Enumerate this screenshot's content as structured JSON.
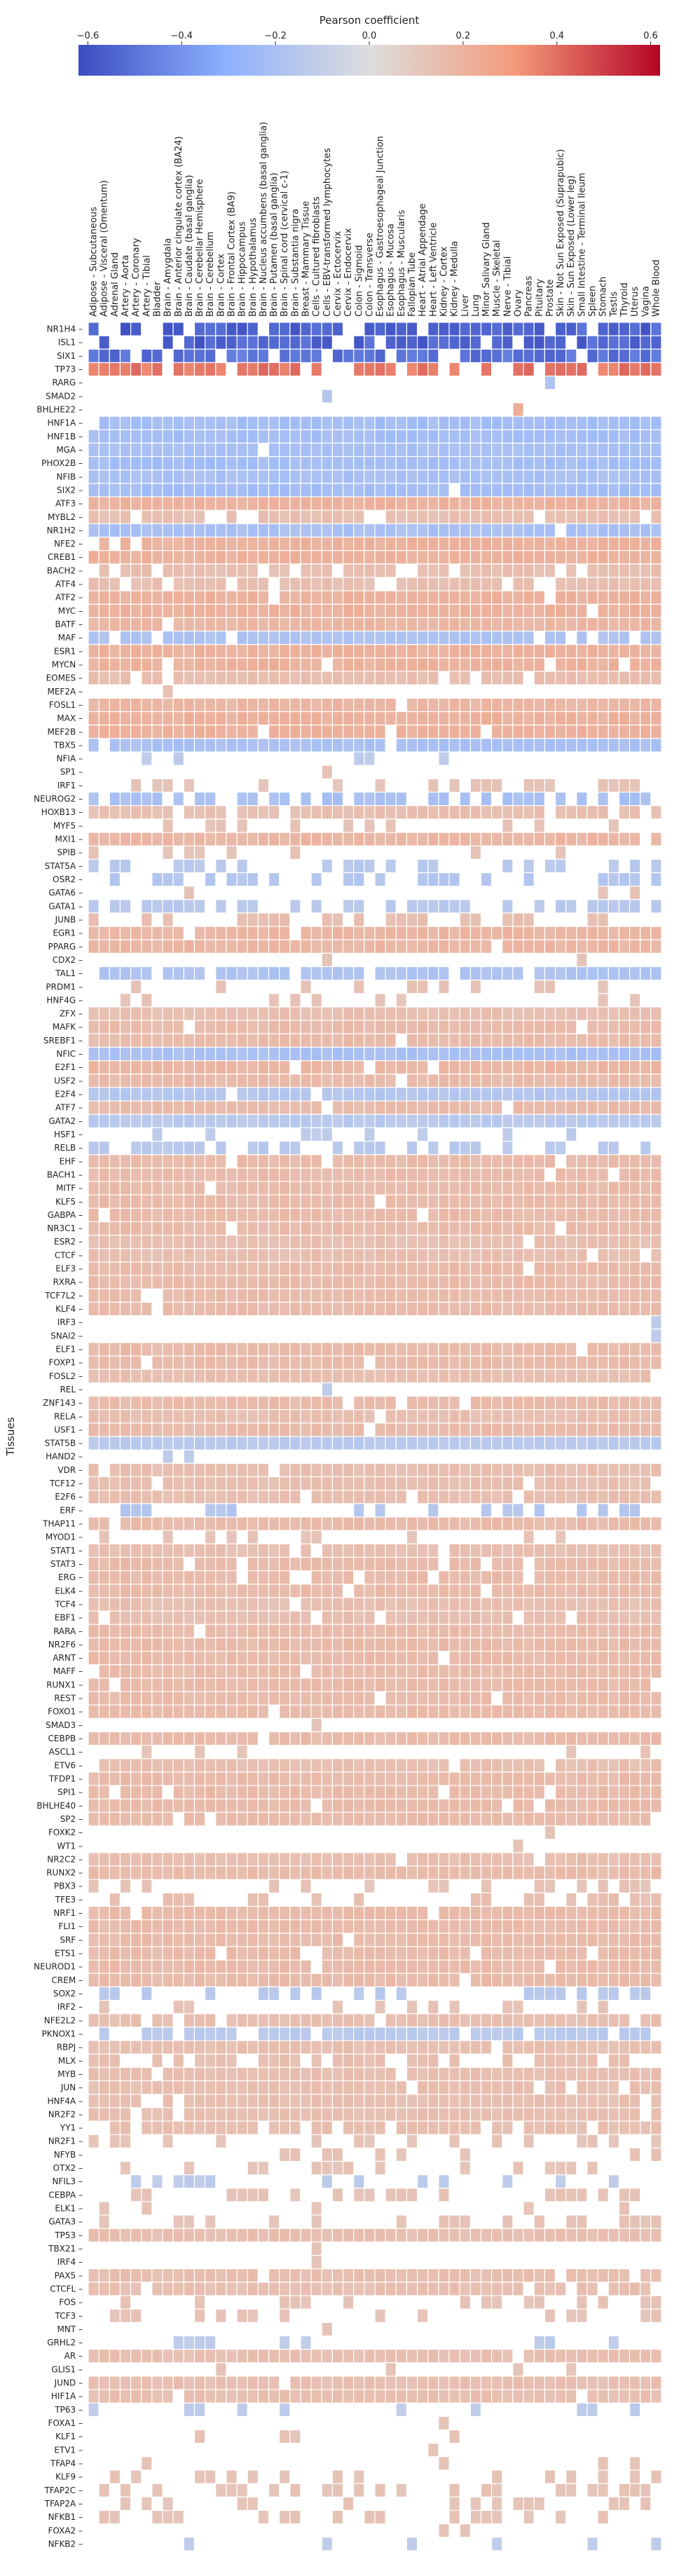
{
  "chart_data": {
    "type": "heatmap",
    "title": "",
    "xlabel": "",
    "ylabel": "Tissues",
    "colorbar": {
      "label": "Pearson coefficient",
      "range": [
        -0.62,
        0.62
      ],
      "ticks": [
        -0.6,
        -0.4,
        -0.2,
        0.0,
        0.2,
        0.4,
        0.6
      ],
      "tick_labels": [
        "−0.6",
        "−0.4",
        "−0.2",
        "0.0",
        "0.2",
        "0.4",
        "0.6"
      ],
      "colormap": "coolwarm",
      "low_color": "#3b4cc0",
      "mid_color": "#dddddd",
      "high_color": "#b40426"
    },
    "x_labels": [
      "Adipose - Subcutaneous",
      "Adipose - Visceral (Omentum)",
      "Adrenal Gland",
      "Artery - Aorta",
      "Artery - Coronary",
      "Artery - Tibial",
      "Bladder",
      "Brain - Amygdala",
      "Brain - Anterior cingulate cortex (BA24)",
      "Brain - Caudate (basal ganglia)",
      "Brain - Cerebellar Hemisphere",
      "Brain - Cerebellum",
      "Brain - Cortex",
      "Brain - Frontal Cortex (BA9)",
      "Brain - Hippocampus",
      "Brain - Hypothalamus",
      "Brain - Nucleus accumbens (basal ganglia)",
      "Brain - Putamen (basal ganglia)",
      "Brain - Spinal cord (cervical c-1)",
      "Brain - Substantia nigra",
      "Breast - Mammary Tissue",
      "Cells - Cultured fibroblasts",
      "Cells - EBV-transformed lymphocytes",
      "Cervix - Ectocervix",
      "Cervix - Endocervix",
      "Colon - Sigmoid",
      "Colon - Transverse",
      "Esophagus - Gastroesophageal Junction",
      "Esophagus - Mucosa",
      "Esophagus - Muscularis",
      "Fallopian Tube",
      "Heart - Atrial Appendage",
      "Heart - Left Ventricle",
      "Kidney - Cortex",
      "Kidney - Medulla",
      "Liver",
      "Lung",
      "Minor Salivary Gland",
      "Muscle - Skeletal",
      "Nerve - Tibial",
      "Ovary",
      "Pancreas",
      "Pituitary",
      "Prostate",
      "Skin - Not Sun Exposed (Suprapubic)",
      "Skin - Sun Exposed (Lower leg)",
      "Small Intestine - Terminal Ileum",
      "Spleen",
      "Stomach",
      "Testis",
      "Thyroid",
      "Uterus",
      "Vagina",
      "Whole Blood"
    ],
    "y_labels": [
      "NR1H4",
      "ISL1",
      "SIX1",
      "TP73",
      "RARG",
      "SMAD2",
      "BHLHE22",
      "HNF1A",
      "HNF1B",
      "MGA",
      "PHOX2B",
      "NFIB",
      "SIX2",
      "ATF3",
      "MYBL2",
      "NR1H2",
      "NFE2",
      "CREB1",
      "BACH2",
      "ATF4",
      "ATF2",
      "MYC",
      "BATF",
      "MAF",
      "ESR1",
      "MYCN",
      "EOMES",
      "MEF2A",
      "FOSL1",
      "MAX",
      "MEF2B",
      "TBX5",
      "NFIA",
      "SP1",
      "IRF1",
      "NEUROG2",
      "HOXB13",
      "MYF5",
      "MXI1",
      "SPIB",
      "STAT5A",
      "OSR2",
      "GATA6",
      "GATA1",
      "JUNB",
      "EGR1",
      "PPARG",
      "CDX2",
      "TAL1",
      "PRDM1",
      "HNF4G",
      "ZFX",
      "MAFK",
      "SREBF1",
      "NFIC",
      "E2F1",
      "USF2",
      "E2F4",
      "ATF7",
      "GATA2",
      "HSF1",
      "RELB",
      "EHF",
      "BACH1",
      "MITF",
      "KLF5",
      "GABPA",
      "NR3C1",
      "ESR2",
      "CTCF",
      "ELF3",
      "RXRA",
      "TCF7L2",
      "KLF4",
      "IRF3",
      "SNAI2",
      "ELF1",
      "FOXP1",
      "FOSL2",
      "REL",
      "ZNF143",
      "RELA",
      "USF1",
      "STAT5B",
      "HAND2",
      "VDR",
      "TCF12",
      "E2F6",
      "ERF",
      "THAP11",
      "MYOD1",
      "STAT1",
      "STAT3",
      "ERG",
      "ELK4",
      "TCF4",
      "EBF1",
      "RARA",
      "NR2F6",
      "ARNT",
      "MAFF",
      "RUNX1",
      "REST",
      "FOXO1",
      "SMAD3",
      "CEBPB",
      "ASCL1",
      "ETV6",
      "TFDP1",
      "SPI1",
      "BHLHE40",
      "SP2",
      "FOXK2",
      "WT1",
      "NR2C2",
      "RUNX2",
      "PBX3",
      "TFE3",
      "NRF1",
      "FLI1",
      "SRF",
      "ETS1",
      "NEUROD1",
      "CREM",
      "SOX2",
      "IRF2",
      "NFE2L2",
      "PKNOX1",
      "RBPJ",
      "MLX",
      "MYB",
      "JUN",
      "HNF4A",
      "NR2F2",
      "YY1",
      "NR2F1",
      "NFYB",
      "OTX2",
      "NFIL3",
      "CEBPA",
      "ELK1",
      "GATA3",
      "TP53",
      "TBX21",
      "IRF4",
      "PAX5",
      "CTCFL",
      "FOS",
      "TCF3",
      "MNT",
      "GRHL2",
      "AR",
      "GLIS1",
      "JUND",
      "HIF1A",
      "TP63",
      "FOXA1",
      "KLF1",
      "ETV1",
      "TFAP4",
      "KLF9",
      "TFAP2C",
      "TFAP2A",
      "NFKB1",
      "FOXA2",
      "NFKB2"
    ],
    "row_blank_cols": {
      "NR1H4": [
        1,
        2,
        5,
        6,
        9,
        16,
        25,
        31,
        43,
        47
      ],
      "ISL1": [
        0,
        2,
        3,
        4,
        5,
        6,
        8,
        23,
        27,
        37,
        40,
        45
      ],
      "SIX1": [
        4,
        7,
        12,
        17,
        22,
        33,
        46
      ],
      "TP73": [
        7,
        13,
        20,
        23,
        24,
        29,
        33,
        36,
        39,
        42,
        47
      ]
    },
    "sparse_rows": {
      "RARG": [
        [
          43,
          -0.18
        ]
      ],
      "SMAD2": [
        [
          22,
          -0.15
        ]
      ],
      "BHLHE22": [
        [
          40,
          0.22
        ]
      ],
      "SP1": [
        [
          22,
          0.12
        ]
      ],
      "CDX2": [
        [
          22,
          0.12
        ],
        [
          46,
          0.12
        ]
      ],
      "IRF3": [
        [
          53,
          -0.12
        ]
      ],
      "SNAI2": [
        [
          53,
          -0.12
        ]
      ],
      "REL": [
        [
          22,
          -0.12
        ]
      ],
      "HAND2": [
        [
          7,
          -0.12
        ],
        [
          9,
          -0.12
        ]
      ],
      "SMAD3": [
        [
          21,
          0.12
        ]
      ],
      "FOXK2": [
        [
          43,
          0.12
        ]
      ],
      "WT1": [
        [
          40,
          0.12
        ]
      ],
      "TBX21": [
        [
          21,
          0.12
        ]
      ],
      "IRF4": [
        [
          21,
          0.12
        ]
      ],
      "MNT": [
        [
          22,
          0.12
        ]
      ],
      "FOXA1": [
        [
          33,
          0.12
        ]
      ],
      "ETV1": [
        [
          32,
          0.12
        ]
      ],
      "FOXA2": [
        [
          33,
          0.12
        ],
        [
          35,
          0.12
        ]
      ],
      "NFKB2": [
        [
          9,
          -0.12
        ],
        [
          22,
          -0.12
        ],
        [
          30,
          -0.12
        ],
        [
          38,
          -0.12
        ],
        [
          47,
          -0.12
        ],
        [
          53,
          -0.12
        ]
      ]
    },
    "row_mean": {
      "NR1H4": -0.55,
      "ISL1": -0.55,
      "SIX1": -0.5,
      "TP73": 0.38,
      "HNF1A": -0.22,
      "HNF1B": -0.22,
      "MGA": -0.2,
      "PHOX2B": -0.22,
      "NFIB": -0.2,
      "SIX2": -0.22,
      "ATF3": 0.2,
      "MYBL2": 0.14,
      "NR1H2": -0.2,
      "NFE2": 0.2,
      "CREB1": 0.2,
      "BACH2": 0.14,
      "ATF4": 0.14,
      "ATF2": 0.2,
      "MYC": 0.2,
      "BATF": 0.18,
      "MAF": -0.18,
      "ESR1": 0.2,
      "MYCN": 0.2,
      "EOMES": 0.14,
      "MEF2A": 0.12,
      "FOSL1": 0.18,
      "MAX": 0.2,
      "MEF2B": 0.2,
      "TBX5": -0.2,
      "NFIA": -0.12,
      "IRF1": 0.12,
      "NEUROG2": -0.2,
      "HOXB13": 0.14,
      "MYF5": 0.12,
      "MXI1": 0.18,
      "SPIB": 0.12,
      "STAT5A": -0.14,
      "OSR2": -0.16,
      "GATA6": 0.12,
      "GATA1": -0.14,
      "JUNB": 0.14,
      "EGR1": 0.18,
      "PPARG": 0.18,
      "TAL1": -0.18,
      "PRDM1": 0.12,
      "HNF4G": 0.12,
      "ZFX": 0.14,
      "MAFK": 0.16,
      "SREBF1": 0.16,
      "NFIC": -0.2,
      "E2F1": 0.18,
      "USF2": 0.16,
      "E2F4": -0.16,
      "ATF7": 0.16,
      "GATA2": -0.14,
      "HSF1": -0.12,
      "RELB": -0.14,
      "EHF": 0.16,
      "BACH1": 0.16,
      "MITF": 0.16,
      "KLF5": 0.16,
      "GABPA": 0.16,
      "NR3C1": 0.16,
      "ESR2": 0.14,
      "CTCF": 0.14,
      "ELF3": 0.16,
      "RXRA": 0.16,
      "TCF7L2": 0.16,
      "KLF4": 0.16,
      "ELF1": 0.16,
      "FOXP1": 0.16,
      "FOSL2": 0.14,
      "ZNF143": 0.16,
      "RELA": 0.14,
      "USF1": 0.16,
      "STAT5B": -0.14,
      "VDR": 0.14,
      "TCF12": 0.14,
      "E2F6": 0.14,
      "ERF": -0.16,
      "THAP11": 0.16,
      "MYOD1": 0.12,
      "STAT1": 0.14,
      "STAT3": 0.16,
      "ERG": 0.16,
      "ELK4": 0.16,
      "TCF4": 0.14,
      "EBF1": 0.14,
      "RARA": 0.16,
      "NR2F6": 0.16,
      "ARNT": 0.16,
      "MAFF": 0.16,
      "RUNX1": 0.16,
      "REST": 0.16,
      "FOXO1": 0.16,
      "CEBPB": 0.16,
      "ASCL1": 0.12,
      "ETV6": 0.14,
      "TFDP1": 0.16,
      "SPI1": 0.16,
      "BHLHE40": 0.16,
      "SP2": 0.16,
      "NR2C2": 0.14,
      "RUNX2": 0.16,
      "PBX3": 0.12,
      "TFE3": 0.14,
      "NRF1": 0.16,
      "FLI1": 0.16,
      "SRF": 0.16,
      "ETS1": 0.16,
      "NEUROD1": 0.16,
      "CREM": 0.16,
      "SOX2": -0.14,
      "IRF2": 0.12,
      "NFE2L2": 0.14,
      "PKNOX1": -0.14,
      "RBPJ": 0.14,
      "MLX": 0.14,
      "MYB": 0.14,
      "JUN": 0.14,
      "HNF4A": 0.14,
      "NR2F2": 0.14,
      "YY1": 0.14,
      "NR2F1": 0.12,
      "NFYB": 0.12,
      "OTX2": 0.12,
      "NFIL3": -0.12,
      "CEBPA": 0.12,
      "ELK1": 0.12,
      "GATA3": 0.12,
      "TP53": 0.14,
      "PAX5": 0.14,
      "CTCFL": 0.14,
      "FOS": 0.12,
      "TCF3": 0.12,
      "GRHL2": -0.12,
      "AR": 0.14,
      "GLIS1": 0.12,
      "JUND": 0.14,
      "HIF1A": 0.14,
      "TP63": -0.12,
      "KLF1": 0.12,
      "TFAP4": 0.12,
      "KLF9": 0.12,
      "TFAP2C": 0.12,
      "TFAP2A": 0.12,
      "NFKB1": 0.12
    },
    "row_density": {
      "RARG": 0,
      "SMAD2": 0,
      "BHLHE22": 0,
      "MEF2A": 0.05,
      "NFIA": 0.1,
      "IRF1": 0.3,
      "SP1": 0,
      "MYF5": 0.25,
      "SPIB": 0.15,
      "STAT5A": 0.35,
      "OSR2": 0.5,
      "GATA6": 0.05,
      "GATA1": 0.6,
      "JUNB": 0.25,
      "CDX2": 0,
      "PRDM1": 0.15,
      "HNF4G": 0.15,
      "HSF1": 0.15,
      "RELB": 0.5,
      "IRF3": 0,
      "SNAI2": 0,
      "REL": 0,
      "HAND2": 0,
      "ERF": 0.3,
      "MYOD1": 0.2,
      "SMAD3": 0,
      "ASCL1": 0.2,
      "FOXK2": 0,
      "WT1": 0,
      "PBX3": 0.3,
      "TFE3": 0.45,
      "SOX2": 0.35,
      "IRF2": 0.2,
      "PKNOX1": 0.8,
      "MLX": 0.6,
      "NR2F1": 0.2,
      "NFYB": 0.2,
      "OTX2": 0.3,
      "NFIL3": 0.25,
      "CEBPA": 0.35,
      "ELK1": 0.15,
      "GATA3": 0.25,
      "TBX21": 0,
      "IRF4": 0,
      "FOS": 0.3,
      "TCF3": 0.3,
      "MNT": 0,
      "GRHL2": 0.1,
      "GLIS1": 0.05,
      "TP63": 0.15,
      "FOXA1": 0,
      "KLF1": 0.15,
      "ETV1": 0,
      "TFAP4": 0.1,
      "KLF9": 0.25,
      "TFAP2C": 0.3,
      "TFAP2A": 0.35,
      "NFKB1": 0.3,
      "FOXA2": 0,
      "NFKB2": 0,
      "ATF4": 0.8,
      "BACH2": 0.85,
      "MYBL2": 0.85,
      "EOMES": 0.85,
      "NEUROG2": 0.7,
      "HOXB13": 0.85,
      "NR2F2": 0.9,
      "HNF4A": 0.9,
      "YY1": 0.85,
      "CTCFL": 0.9,
      "PAX5": 0.9,
      "NFE2L2": 0.9,
      "ETV6": 0.9,
      "MAF": 0.85,
      "TAL1": 0.85
    }
  }
}
